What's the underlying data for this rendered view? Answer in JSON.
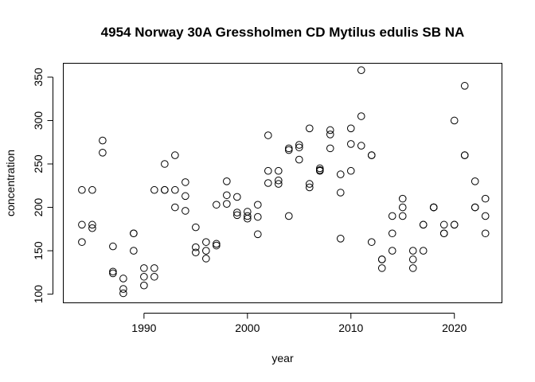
{
  "chart_data": {
    "type": "scatter",
    "title": "4954 Norway 30A Gressholmen CD Mytilus edulis SB NA",
    "xlabel": "year",
    "ylabel": "concentration",
    "xlim": [
      1982.2,
      2024.6
    ],
    "ylim": [
      90,
      366
    ],
    "xticks": [
      1990,
      2000,
      2010,
      2020
    ],
    "yticks": [
      100,
      150,
      200,
      250,
      300,
      350
    ],
    "grid": false,
    "legend": "none",
    "points": [
      [
        1984,
        220
      ],
      [
        1984,
        180
      ],
      [
        1984,
        160
      ],
      [
        1985,
        220
      ],
      [
        1985,
        180
      ],
      [
        1985,
        176
      ],
      [
        1986,
        277
      ],
      [
        1986,
        263
      ],
      [
        1987,
        155
      ],
      [
        1987,
        126
      ],
      [
        1987,
        124
      ],
      [
        1988,
        118
      ],
      [
        1988,
        106
      ],
      [
        1988,
        101
      ],
      [
        1989,
        170
      ],
      [
        1989,
        170
      ],
      [
        1989,
        150
      ],
      [
        1990,
        130
      ],
      [
        1990,
        120
      ],
      [
        1990,
        110
      ],
      [
        1991,
        220
      ],
      [
        1991,
        130
      ],
      [
        1991,
        120
      ],
      [
        1992,
        250
      ],
      [
        1992,
        220
      ],
      [
        1992,
        220
      ],
      [
        1993,
        260
      ],
      [
        1993,
        220
      ],
      [
        1993,
        200
      ],
      [
        1994,
        229
      ],
      [
        1994,
        213
      ],
      [
        1994,
        196
      ],
      [
        1995,
        177
      ],
      [
        1995,
        154
      ],
      [
        1995,
        148
      ],
      [
        1996,
        160
      ],
      [
        1996,
        150
      ],
      [
        1996,
        141
      ],
      [
        1997,
        203
      ],
      [
        1997,
        158
      ],
      [
        1997,
        156
      ],
      [
        1998,
        230
      ],
      [
        1998,
        214
      ],
      [
        1998,
        204
      ],
      [
        1999,
        212
      ],
      [
        1999,
        194
      ],
      [
        1999,
        191
      ],
      [
        2000,
        195
      ],
      [
        2000,
        190
      ],
      [
        2000,
        187
      ],
      [
        2001,
        203
      ],
      [
        2001,
        189
      ],
      [
        2001,
        169
      ],
      [
        2002,
        283
      ],
      [
        2002,
        242
      ],
      [
        2002,
        228
      ],
      [
        2003,
        242
      ],
      [
        2003,
        231
      ],
      [
        2003,
        227
      ],
      [
        2004,
        268
      ],
      [
        2004,
        266
      ],
      [
        2004,
        190
      ],
      [
        2005,
        272
      ],
      [
        2005,
        269
      ],
      [
        2005,
        255
      ],
      [
        2006,
        291
      ],
      [
        2006,
        227
      ],
      [
        2006,
        223
      ],
      [
        2007,
        245
      ],
      [
        2007,
        243
      ],
      [
        2007,
        242
      ],
      [
        2008,
        289
      ],
      [
        2008,
        284
      ],
      [
        2008,
        268
      ],
      [
        2009,
        238
      ],
      [
        2009,
        217
      ],
      [
        2009,
        164
      ],
      [
        2010,
        291
      ],
      [
        2010,
        273
      ],
      [
        2010,
        242
      ],
      [
        2011,
        358
      ],
      [
        2011,
        305
      ],
      [
        2011,
        271
      ],
      [
        2012,
        260
      ],
      [
        2012,
        260
      ],
      [
        2012,
        160
      ],
      [
        2013,
        140
      ],
      [
        2013,
        140
      ],
      [
        2013,
        130
      ],
      [
        2014,
        190
      ],
      [
        2014,
        170
      ],
      [
        2014,
        150
      ],
      [
        2015,
        210
      ],
      [
        2015,
        200
      ],
      [
        2015,
        190
      ],
      [
        2016,
        150
      ],
      [
        2016,
        140
      ],
      [
        2016,
        130
      ],
      [
        2017,
        180
      ],
      [
        2017,
        180
      ],
      [
        2017,
        150
      ],
      [
        2018,
        200
      ],
      [
        2018,
        200
      ],
      [
        2018,
        200
      ],
      [
        2019,
        180
      ],
      [
        2019,
        170
      ],
      [
        2019,
        170
      ],
      [
        2020,
        300
      ],
      [
        2020,
        180
      ],
      [
        2020,
        180
      ],
      [
        2021,
        340
      ],
      [
        2021,
        260
      ],
      [
        2021,
        260
      ],
      [
        2022,
        230
      ],
      [
        2022,
        200
      ],
      [
        2022,
        200
      ],
      [
        2023,
        210
      ],
      [
        2023,
        190
      ],
      [
        2023,
        170
      ]
    ]
  }
}
